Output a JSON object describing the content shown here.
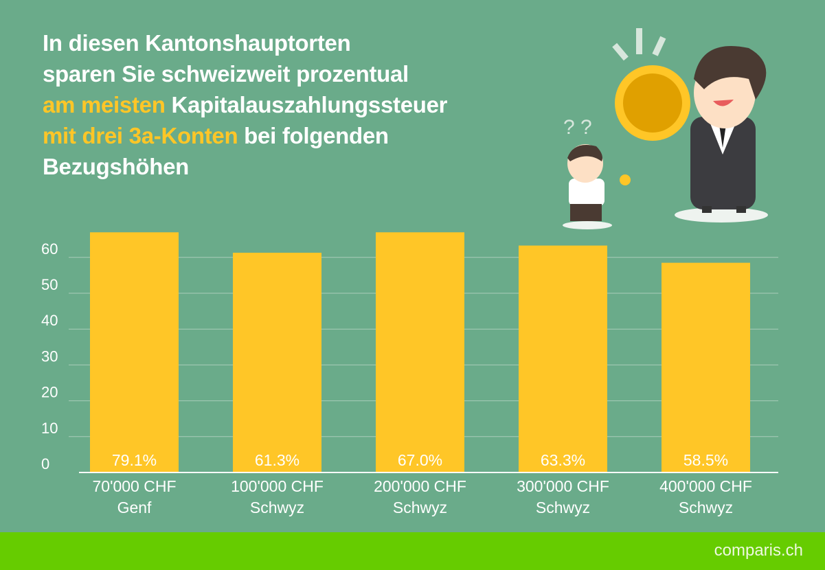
{
  "title": {
    "line1": "In diesen Kantonshauptorten",
    "line2": "sparen Sie schweizweit prozentual",
    "line3_highlight": "am meisten",
    "line3_rest": " Kapitalauszahlungssteuer",
    "line4_highlight": "mit drei 3a-Konten",
    "line4_rest": " bei folgenden",
    "line5": "Bezugshöhen"
  },
  "colors": {
    "background": "#6aab8a",
    "bar": "#ffc627",
    "highlight": "#ffc627",
    "footer": "#66cc00"
  },
  "chart_data": {
    "type": "bar",
    "categories": [
      "70'000 CHF\nGenf",
      "100'000 CHF\nSchwyz",
      "200'000 CHF\nSchwyz",
      "300'000 CHF\nSchwyz",
      "400'000 CHF\nSchwyz"
    ],
    "category_lines": [
      [
        "70'000 CHF",
        "Genf"
      ],
      [
        "100'000 CHF",
        "Schwyz"
      ],
      [
        "200'000 CHF",
        "Schwyz"
      ],
      [
        "300'000 CHF",
        "Schwyz"
      ],
      [
        "400'000 CHF",
        "Schwyz"
      ]
    ],
    "values": [
      79.1,
      61.3,
      67.0,
      63.3,
      58.5
    ],
    "data_labels": [
      "79.1%",
      "61.3%",
      "67.0%",
      "63.3%",
      "58.5%"
    ],
    "yticks": [
      0,
      10,
      20,
      30,
      40,
      50,
      60
    ],
    "ylim": [
      0,
      67
    ],
    "grid": true,
    "legend": "none",
    "xlabel": "",
    "ylabel": ""
  },
  "footer": {
    "logo": "comparis.ch"
  }
}
